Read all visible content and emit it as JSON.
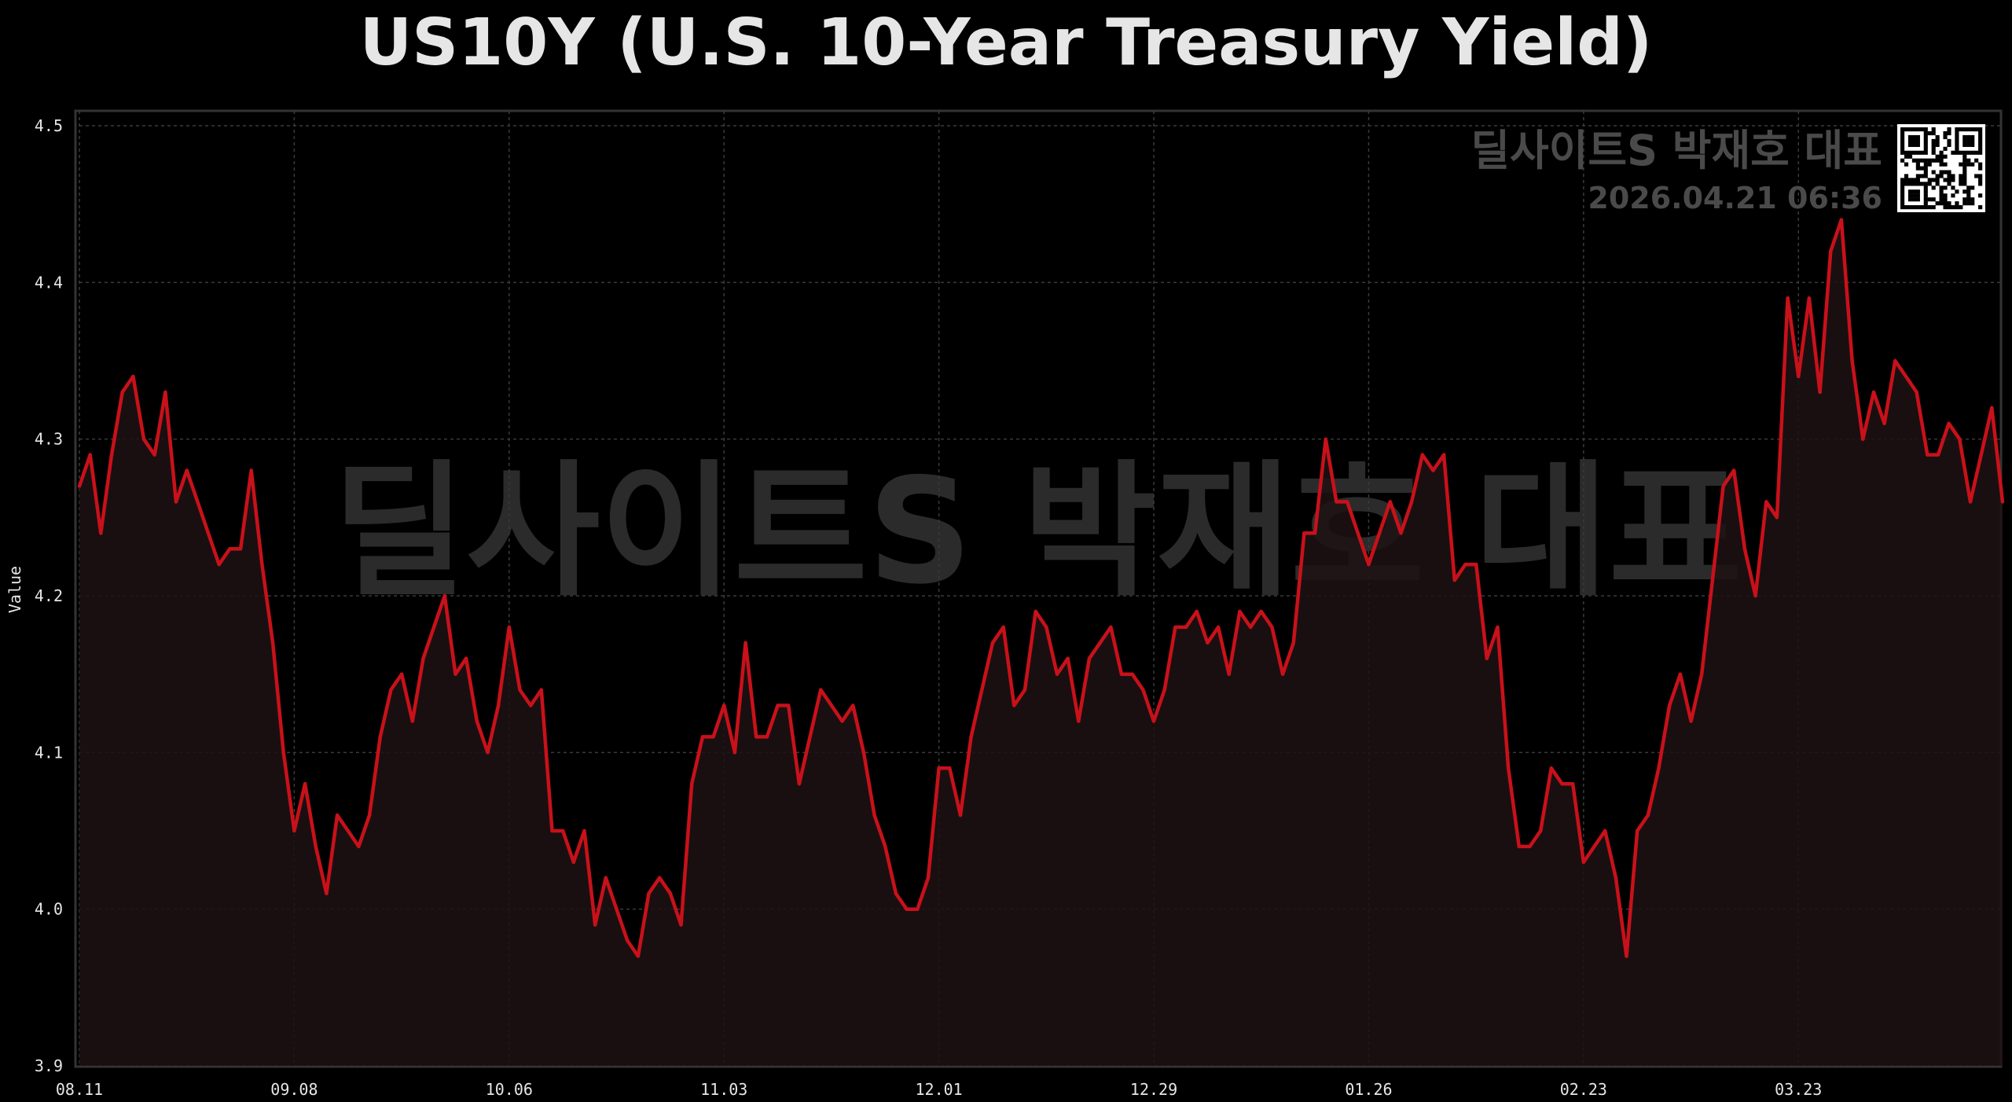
{
  "chart_data": {
    "type": "area",
    "title": "US10Y (U.S. 10-Year Treasury Yield)",
    "xlabel": "",
    "ylabel": "Value",
    "ylim": [
      3.9,
      4.5
    ],
    "yticks": [
      "3.9",
      "4.0",
      "4.1",
      "4.2",
      "4.3",
      "4.4",
      "4.5"
    ],
    "xticks": [
      "08.11",
      "09.08",
      "10.06",
      "11.03",
      "12.01",
      "12.29",
      "01.26",
      "02.23",
      "03.23"
    ],
    "grid": true,
    "legend": "none",
    "series": [
      {
        "values": [
          4.27,
          4.29,
          4.24,
          4.29,
          4.33,
          4.34,
          4.3,
          4.29,
          4.33,
          4.26,
          4.28,
          4.26,
          4.24,
          4.22,
          4.23,
          4.23,
          4.28,
          4.22,
          4.17,
          4.1,
          4.05,
          4.08,
          4.04,
          4.01,
          4.06,
          4.05,
          4.04,
          4.06,
          4.11,
          4.14,
          4.15,
          4.12,
          4.16,
          4.18,
          4.2,
          4.15,
          4.16,
          4.12,
          4.1,
          4.13,
          4.18,
          4.14,
          4.13,
          4.14,
          4.05,
          4.05,
          4.03,
          4.05,
          3.99,
          4.02,
          4.0,
          3.98,
          3.97,
          4.01,
          4.02,
          4.01,
          3.99,
          4.08,
          4.11,
          4.11,
          4.13,
          4.1,
          4.17,
          4.11,
          4.11,
          4.13,
          4.13,
          4.08,
          4.11,
          4.14,
          4.13,
          4.12,
          4.13,
          4.1,
          4.06,
          4.04,
          4.01,
          4.0,
          4.0,
          4.02,
          4.09,
          4.09,
          4.06,
          4.11,
          4.14,
          4.17,
          4.18,
          4.13,
          4.14,
          4.19,
          4.18,
          4.15,
          4.16,
          4.12,
          4.16,
          4.17,
          4.18,
          4.15,
          4.15,
          4.14,
          4.12,
          4.14,
          4.18,
          4.18,
          4.19,
          4.17,
          4.18,
          4.15,
          4.19,
          4.18,
          4.19,
          4.18,
          4.15,
          4.17,
          4.24,
          4.24,
          4.3,
          4.26,
          4.26,
          4.24,
          4.22,
          4.24,
          4.26,
          4.24,
          4.26,
          4.29,
          4.28,
          4.29,
          4.21,
          4.22,
          4.22,
          4.16,
          4.18,
          4.09,
          4.04,
          4.04,
          4.05,
          4.09,
          4.08,
          4.08,
          4.03,
          4.04,
          4.05,
          4.02,
          3.97,
          4.05,
          4.06,
          4.09,
          4.13,
          4.15,
          4.12,
          4.15,
          4.21,
          4.27,
          4.28,
          4.23,
          4.2,
          4.26,
          4.25,
          4.39,
          4.34,
          4.39,
          4.33,
          4.42,
          4.44,
          4.35,
          4.3,
          4.33,
          4.31,
          4.35,
          4.34,
          4.33,
          4.29,
          4.29,
          4.31,
          4.3,
          4.26,
          4.29,
          4.32,
          4.26
        ]
      }
    ],
    "colors": {
      "line": "#c8111a",
      "fill": "#1e1213",
      "grid": "#3a3a3a",
      "text": "#e6e6e6",
      "watermark": "#4a4a4a"
    }
  },
  "watermark": {
    "main": "딜사이트S 박재호 대표",
    "brand": "딜사이트S 박재호 대표",
    "timestamp": "2026.04.21 06:36"
  }
}
